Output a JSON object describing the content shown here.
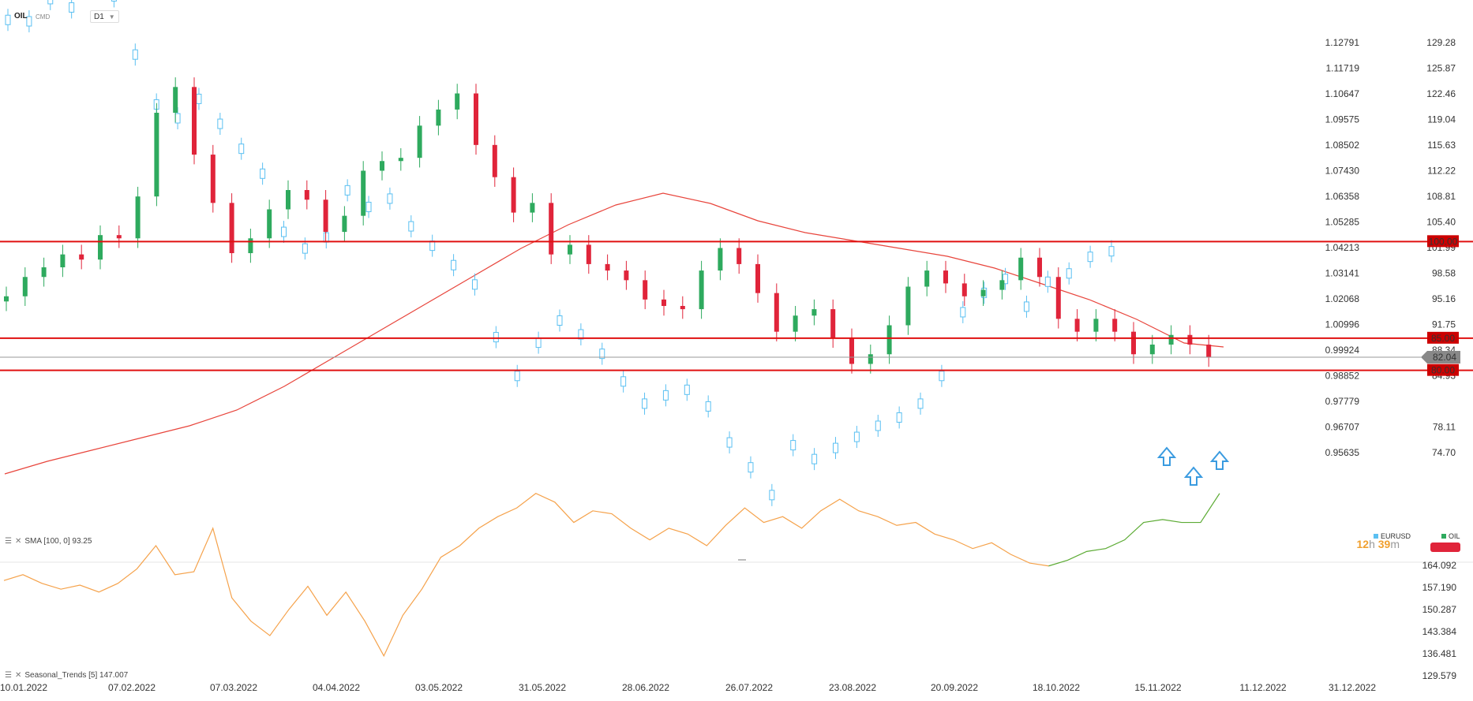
{
  "header": {
    "symbol": "OIL",
    "symbol_sub": "CMD",
    "interval": "D1"
  },
  "indicators": {
    "sma_label": "SMA [100, 0] 93.25",
    "seasonal_label": "Seasonal_Trends [5] 147.007"
  },
  "legend": {
    "eurusd": "EURUSD",
    "oil": "OIL",
    "eurusd_color": "#5bc0f2",
    "oil_color": "#2eaa5e"
  },
  "timer": {
    "hours": "12",
    "h": "h",
    "minutes": "39",
    "m": "m"
  },
  "chart_data": {
    "type": "candlestick",
    "title": "",
    "main_panel": {
      "left_axis_eurusd": [
        "1.12791",
        "1.11719",
        "1.10647",
        "1.09575",
        "1.08502",
        "1.07430",
        "1.06358",
        "1.05285",
        "1.04213",
        "1.03141",
        "1.02068",
        "1.00996",
        "0.99924",
        "0.98852",
        "0.97779",
        "0.96707",
        "0.95635"
      ],
      "right_axis_oil": [
        "129.28",
        "125.87",
        "122.46",
        "119.04",
        "115.63",
        "112.22",
        "108.81",
        "105.40",
        "101.99",
        "98.58",
        "95.16",
        "91.75",
        "88.34",
        "84.93",
        "82.04",
        "78.11",
        "74.70"
      ],
      "oil_ylim": [
        72.0,
        132.0
      ],
      "current_price": "82.04",
      "horizontal_levels": [
        {
          "value": 100.0,
          "label": "100.00"
        },
        {
          "value": 85.0,
          "label": "85.00"
        },
        {
          "value": 80.0,
          "label": "80.00"
        }
      ],
      "oil_series_approx_closes": [
        91.5,
        94.5,
        96.0,
        98.0,
        97.2,
        101.0,
        100.5,
        107.0,
        120.0,
        124.0,
        113.5,
        106.0,
        98.2,
        100.5,
        105.0,
        108.0,
        106.5,
        101.5,
        104.0,
        111.0,
        112.5,
        113.0,
        118.0,
        120.5,
        123.0,
        115.0,
        110.0,
        104.5,
        106.0,
        98.0,
        99.5,
        96.5,
        95.5,
        94.0,
        91.0,
        90.0,
        89.5,
        95.5,
        99.0,
        96.5,
        92.0,
        86.0,
        88.5,
        89.5,
        85.0,
        81.0,
        82.5,
        87.0,
        93.0,
        95.5,
        93.5,
        91.5,
        92.5,
        94.0,
        97.5,
        94.5,
        88.0,
        86.0,
        88.0,
        86.0,
        82.5,
        84.0,
        85.5,
        84.0,
        82.04
      ],
      "eurusd_series_approx": [
        1.1335,
        1.133,
        1.141,
        1.138,
        1.145,
        1.142,
        1.121,
        1.103,
        1.098,
        1.105,
        1.096,
        1.087,
        1.078,
        1.057,
        1.051,
        1.055,
        1.072,
        1.066,
        1.069,
        1.059,
        1.052,
        1.045,
        1.038,
        1.019,
        1.005,
        1.017,
        1.025,
        1.02,
        1.013,
        1.003,
        0.995,
        0.998,
        1.0,
        0.994,
        0.981,
        0.972,
        0.962,
        0.98,
        0.975,
        0.979,
        0.983,
        0.987,
        0.99,
        0.995,
        1.005,
        1.028,
        1.035,
        1.04,
        1.03,
        1.039,
        1.042,
        1.048,
        1.05
      ],
      "sma_100_label": "SMA [100, 0] 93.25"
    },
    "lower_panel": {
      "axis": [
        "164.092",
        "157.190",
        "150.287",
        "143.384",
        "136.481",
        "129.579"
      ],
      "ylim": [
        129.579,
        164.092
      ],
      "seasonal_historical": [
        146.0,
        147.0,
        145.5,
        144.5,
        145.2,
        144.0,
        145.5,
        148.0,
        152.0,
        147.0,
        147.5,
        155.0,
        143.0,
        139.0,
        136.5,
        141.0,
        145.0,
        140.0,
        144.0,
        139.0,
        133.0,
        140.0,
        144.5,
        150.0,
        152.0,
        155.0,
        157.0,
        158.5,
        161.0,
        159.5,
        156.0,
        158.0,
        157.5,
        155.0,
        153.0,
        155.0,
        154.0,
        152.0,
        155.5,
        158.5,
        156.0,
        157.0,
        155.0,
        158.0,
        160.0,
        158.0,
        157.0,
        155.5,
        156.0,
        154.0,
        153.0,
        151.5,
        152.5,
        150.5,
        149.0,
        148.5
      ],
      "seasonal_projection": [
        148.5,
        149.5,
        151.0,
        151.5,
        153.0,
        156.0,
        156.5,
        156.0,
        156.0,
        161.0
      ]
    },
    "x_ticks": [
      "10.01.2022",
      "07.02.2022",
      "07.03.2022",
      "04.04.2022",
      "03.05.2022",
      "31.05.2022",
      "28.06.2022",
      "26.07.2022",
      "23.08.2022",
      "20.09.2022",
      "18.10.2022",
      "15.11.2022",
      "11.12.2022",
      "31.12.2022"
    ],
    "annotations": [
      "up-arrow",
      "up-arrow",
      "up-arrow"
    ],
    "colors": {
      "bull": "#2eaa5e",
      "bear": "#e0243a",
      "eurusd": "#5bc0f2",
      "sma": "#e8453c",
      "level": "#e01010",
      "seasonal_hist": "#f5a24b",
      "seasonal_proj": "#5cab34"
    }
  }
}
